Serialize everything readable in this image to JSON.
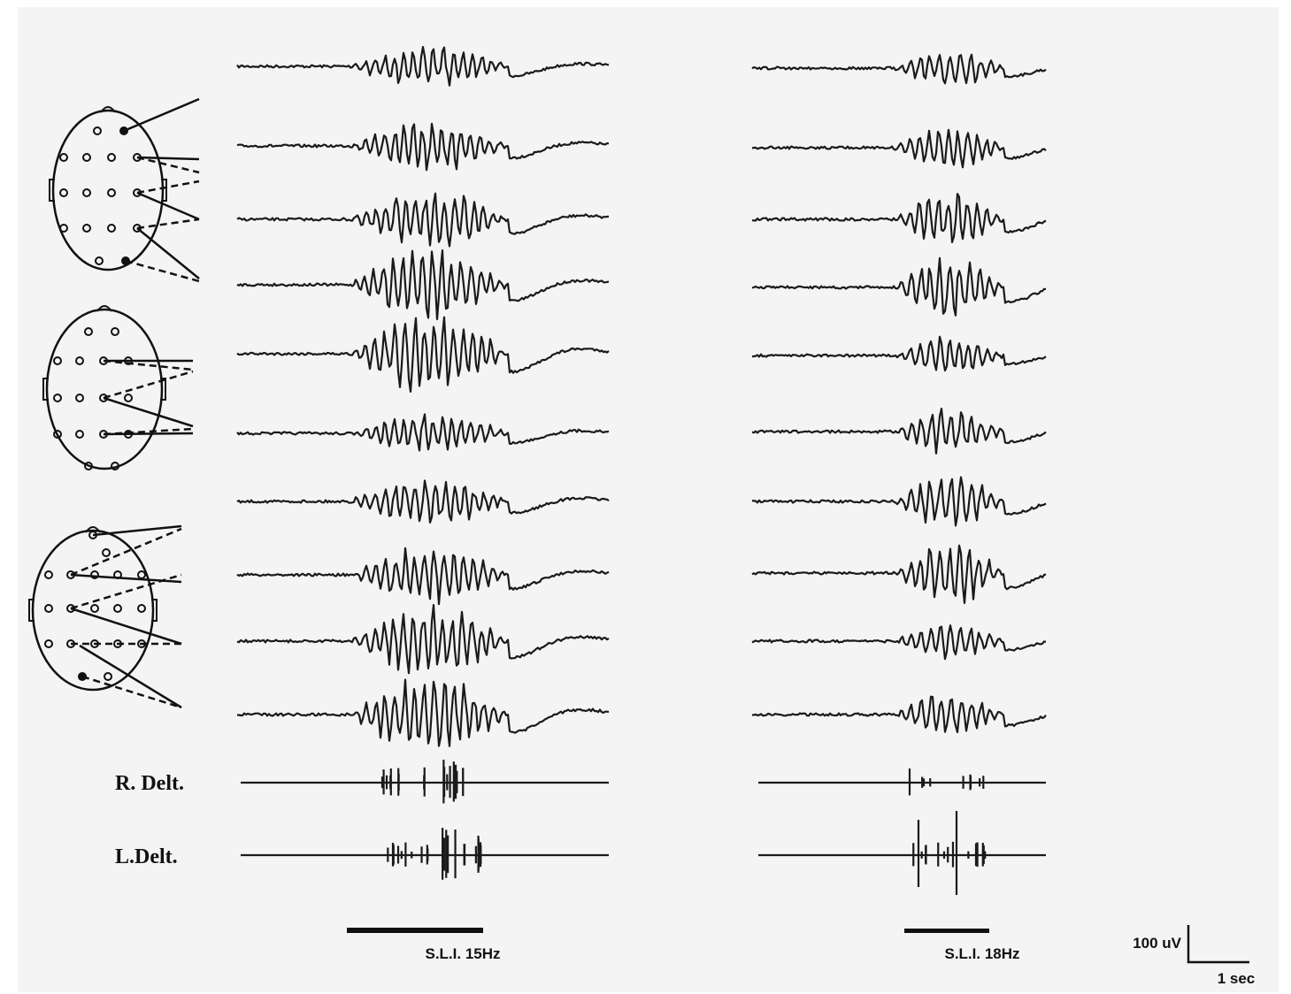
{
  "labels": {
    "right_deltoid": "R. Delt.",
    "left_deltoid": "L.Delt."
  },
  "stimuli": [
    {
      "label": "S.L.I. 15Hz"
    },
    {
      "label": "S.L.I. 18Hz"
    }
  ],
  "scale": {
    "amplitude": "100 uV",
    "time": "1 sec"
  }
}
